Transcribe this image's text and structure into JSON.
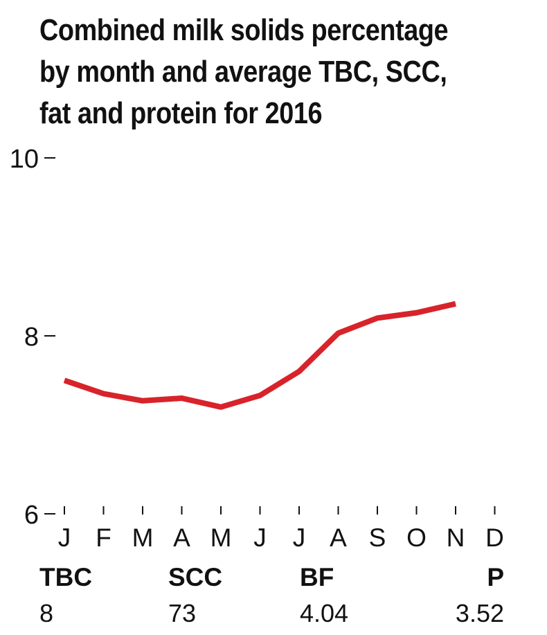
{
  "title_lines": [
    "Combined milk solids percentage",
    "by month and average TBC, SCC,",
    "fat and protein for 2016"
  ],
  "colors": {
    "line": "#d8232a",
    "axis": "#111111",
    "text": "#111111"
  },
  "chart_data": {
    "type": "line",
    "title": "Combined milk solids percentage by month and average TBC, SCC, fat and protein for 2016",
    "categories": [
      "J",
      "F",
      "M",
      "A",
      "M",
      "J",
      "J",
      "A",
      "S",
      "O",
      "N",
      "D"
    ],
    "series": [
      {
        "values": [
          7.5,
          7.35,
          7.27,
          7.3,
          7.2,
          7.33,
          7.6,
          8.03,
          8.2,
          8.26,
          8.36,
          null
        ]
      }
    ],
    "y_ticks": [
      6,
      8,
      10
    ],
    "ylim": [
      6,
      10
    ],
    "xlabel": "",
    "ylabel": "",
    "grid": false,
    "legend": "none"
  },
  "stats": [
    {
      "label": "TBC",
      "value": "8"
    },
    {
      "label": "SCC",
      "value": "73"
    },
    {
      "label": "BF",
      "value": "4.04"
    },
    {
      "label": "P",
      "value": "3.52"
    }
  ]
}
